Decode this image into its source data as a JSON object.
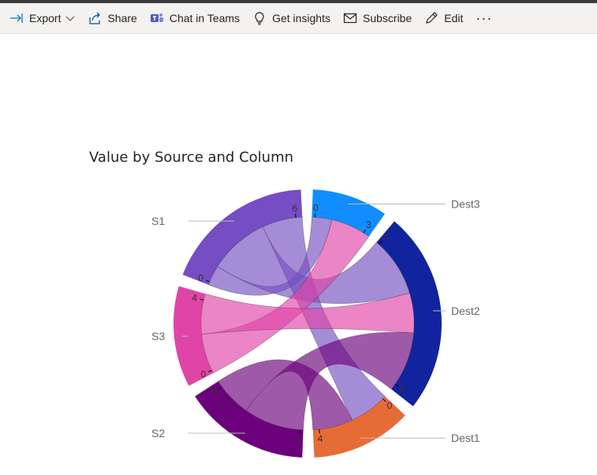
{
  "toolbar": {
    "items": [
      {
        "label": "Export",
        "icon": "export-icon"
      },
      {
        "label": "Share",
        "icon": "share-icon"
      },
      {
        "label": "Chat in Teams",
        "icon": "teams-icon"
      },
      {
        "label": "Get insights",
        "icon": "lightbulb-icon"
      },
      {
        "label": "Subscribe",
        "icon": "mail-icon"
      },
      {
        "label": "Edit",
        "icon": "pencil-icon"
      }
    ],
    "more": "···"
  },
  "visual": {
    "title": "Value by Source and Column"
  },
  "chart_data": {
    "type": "chord",
    "title": "Value by Source and Column",
    "nodes": [
      {
        "name": "Dest3",
        "value": 3,
        "color": "#118dff"
      },
      {
        "name": "Dest2",
        "value": 8,
        "color": "#12239e"
      },
      {
        "name": "Dest1",
        "value": 4,
        "color": "#e66c37"
      },
      {
        "name": "S2",
        "value": 5,
        "color": "#6b007b"
      },
      {
        "name": "S3",
        "value": 4,
        "color": "#e044a7"
      },
      {
        "name": "S1",
        "value": 6,
        "color": "#744ec2"
      }
    ],
    "links": [
      {
        "source": "S1",
        "target": "Dest3",
        "value": 1
      },
      {
        "source": "S1",
        "target": "Dest2",
        "value": 3
      },
      {
        "source": "S1",
        "target": "Dest1",
        "value": 2
      },
      {
        "source": "S3",
        "target": "Dest3",
        "value": 2
      },
      {
        "source": "S3",
        "target": "Dest2",
        "value": 2
      },
      {
        "source": "S2",
        "target": "Dest2",
        "value": 3
      },
      {
        "source": "S2",
        "target": "Dest1",
        "value": 2
      }
    ],
    "tick_labels": [
      "0",
      "3",
      "0",
      "6",
      "0",
      "4",
      "0",
      "5",
      "0",
      "4",
      "0",
      "6"
    ]
  }
}
